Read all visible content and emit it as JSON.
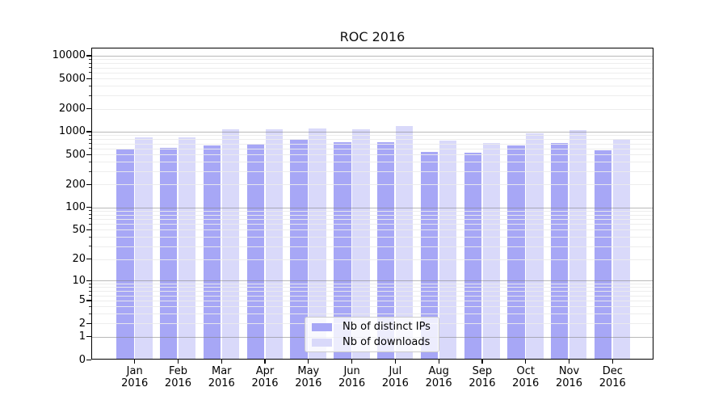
{
  "chart_data": {
    "type": "bar",
    "title": "ROC 2016",
    "categories": [
      "Jan 2016",
      "Feb 2016",
      "Mar 2016",
      "Apr 2016",
      "May 2016",
      "Jun 2016",
      "Jul 2016",
      "Aug 2016",
      "Sep 2016",
      "Oct 2016",
      "Nov 2016",
      "Dec 2016"
    ],
    "series": [
      {
        "name": "Nb of distinct IPs",
        "color": "#a7a7f6",
        "values": [
          570,
          590,
          640,
          680,
          760,
          710,
          710,
          530,
          520,
          650,
          690,
          560
        ]
      },
      {
        "name": "Nb of downloads",
        "color": "#d9d9fa",
        "values": [
          820,
          820,
          1050,
          1050,
          1080,
          1040,
          1170,
          740,
          690,
          930,
          1030,
          780
        ]
      }
    ],
    "yscale": "log1p",
    "y_axis_ticks": [
      0,
      1,
      2,
      5,
      10,
      20,
      50,
      100,
      200,
      500,
      1000,
      2000,
      5000,
      10000
    ],
    "ylim": [
      0,
      12800
    ],
    "xlabel": "",
    "ylabel": "",
    "grid": "major-and-minor-horizontal",
    "legend_position": "inside-bottom-center"
  },
  "colors": {
    "bar_distinct_ips": "#a7a7f6",
    "bar_downloads": "#d9d9fa",
    "grid_major": "#bababa",
    "grid_minor": "#ededed",
    "axis": "#000000",
    "background": "#ffffff",
    "legend_border": "#cccccc"
  }
}
